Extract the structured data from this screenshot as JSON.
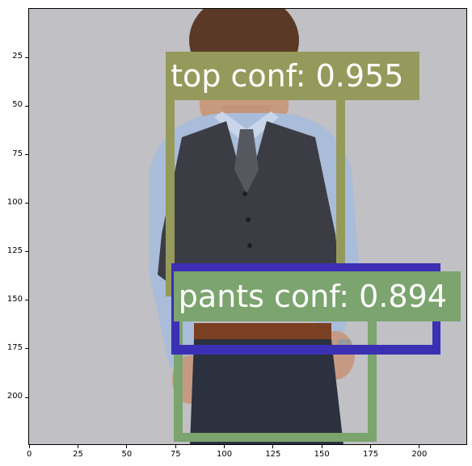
{
  "chart_data": {
    "type": "image-with-detections",
    "x_ticks": [
      0,
      25,
      50,
      75,
      100,
      125,
      150,
      175,
      200
    ],
    "y_ticks": [
      25,
      50,
      75,
      100,
      125,
      150,
      175,
      200
    ],
    "xlim": [
      -0.5,
      224.5
    ],
    "ylim": [
      224.5,
      -0.5
    ],
    "detections": [
      {
        "label_text": "top conf: 0.955",
        "color": "#959a5c",
        "box": {
          "x0": 70,
          "y0": 22,
          "x1": 162,
          "y1": 148
        },
        "label_box": {
          "x0": 70,
          "y0": 22,
          "x1": 200,
          "y1": 47
        }
      },
      {
        "label_text": "pants conf: 0.894",
        "color": "#7ca46e",
        "box": {
          "x0": 74,
          "y0": 135,
          "x1": 178,
          "y1": 223
        },
        "label_box": {
          "x0": 74,
          "y0": 135,
          "x1": 221,
          "y1": 161
        }
      },
      {
        "label_text": "",
        "color": "#3b2fb3",
        "box": {
          "x0": 73,
          "y0": 131,
          "x1": 211,
          "y1": 178
        },
        "label_box": null
      }
    ]
  }
}
